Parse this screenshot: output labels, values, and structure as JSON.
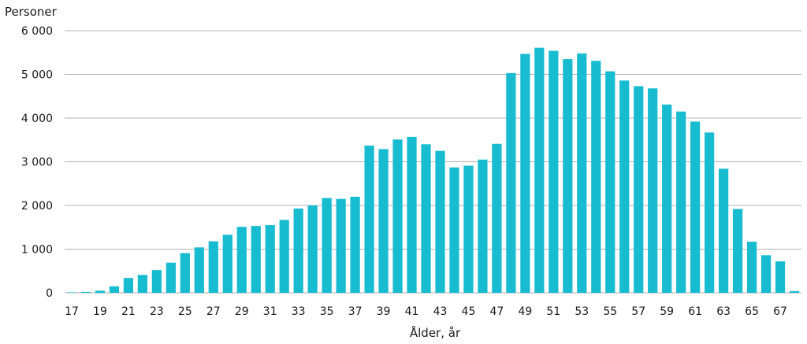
{
  "chart_data": {
    "type": "bar",
    "ylabel": "Personer",
    "xlabel": "Ålder, år",
    "ylim": [
      0,
      6000
    ],
    "yticks": [
      0,
      1000,
      2000,
      3000,
      4000,
      5000,
      6000
    ],
    "ytick_labels": [
      "0",
      "1 000",
      "2 000",
      "3 000",
      "4 000",
      "5 000",
      "6 000"
    ],
    "categories": [
      17,
      18,
      19,
      20,
      21,
      22,
      23,
      24,
      25,
      26,
      27,
      28,
      29,
      30,
      31,
      32,
      33,
      34,
      35,
      36,
      37,
      38,
      39,
      40,
      41,
      42,
      43,
      44,
      45,
      46,
      47,
      48,
      49,
      50,
      51,
      52,
      53,
      54,
      55,
      56,
      57,
      58,
      59,
      60,
      61,
      62,
      63,
      64,
      65,
      66,
      67,
      68
    ],
    "xtick_labels": [
      "17",
      "19",
      "21",
      "23",
      "25",
      "27",
      "29",
      "31",
      "33",
      "35",
      "37",
      "39",
      "41",
      "43",
      "45",
      "47",
      "49",
      "51",
      "53",
      "55",
      "57",
      "59",
      "61",
      "63",
      "65",
      "67"
    ],
    "values": [
      10,
      20,
      50,
      150,
      340,
      410,
      520,
      690,
      910,
      1040,
      1180,
      1330,
      1510,
      1530,
      1550,
      1670,
      1930,
      2000,
      2170,
      2150,
      2200,
      3370,
      3290,
      3510,
      3570,
      3400,
      3250,
      2870,
      2910,
      3050,
      3410,
      5030,
      5470,
      5610,
      5540,
      5350,
      5480,
      5310,
      5070,
      4860,
      4730,
      4680,
      4310,
      4150,
      3920,
      3670,
      2840,
      1920,
      1170,
      860,
      720,
      40
    ],
    "bar_color": "#18bcd0",
    "grid_color": "#b3b3b3",
    "grid": true
  }
}
